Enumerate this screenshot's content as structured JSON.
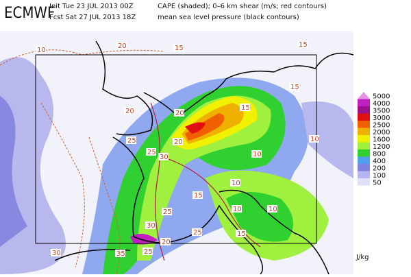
{
  "header": {
    "logo": "ECMWF",
    "init": "Init  Tue 23 JUL 2013 00Z",
    "fcst": "Fcst Sat 27 JUL 2013 18Z",
    "line1": "CAPE (shaded); 0–6 km shear (m/s; red contours)",
    "line2": "mean sea level pressure (black contours)"
  },
  "legend": {
    "items": [
      {
        "label": "5000",
        "color": "#e890e8"
      },
      {
        "label": "4000",
        "color": "#c020c0"
      },
      {
        "label": "3500",
        "color": "#9a1090"
      },
      {
        "label": "3000",
        "color": "#e01010"
      },
      {
        "label": "2500",
        "color": "#f06000"
      },
      {
        "label": "2000",
        "color": "#f0b000"
      },
      {
        "label": "1600",
        "color": "#f0f000"
      },
      {
        "label": "1200",
        "color": "#a0f040"
      },
      {
        "label": "800",
        "color": "#30d030"
      },
      {
        "label": "400",
        "color": "#50a0f0"
      },
      {
        "label": "200",
        "color": "#8080e0"
      },
      {
        "label": "100",
        "color": "#b4b4f0"
      },
      {
        "label": "50",
        "color": "#e0e0f8"
      }
    ],
    "unit": "J/kg"
  },
  "contour_labels": [
    "10",
    "20",
    "15",
    "15",
    "15",
    "20",
    "20",
    "15",
    "10",
    "25",
    "20",
    "25",
    "10",
    "30",
    "10",
    "15",
    "25",
    "10",
    "10",
    "30",
    "20",
    "25",
    "15",
    "35",
    "25",
    "30"
  ]
}
